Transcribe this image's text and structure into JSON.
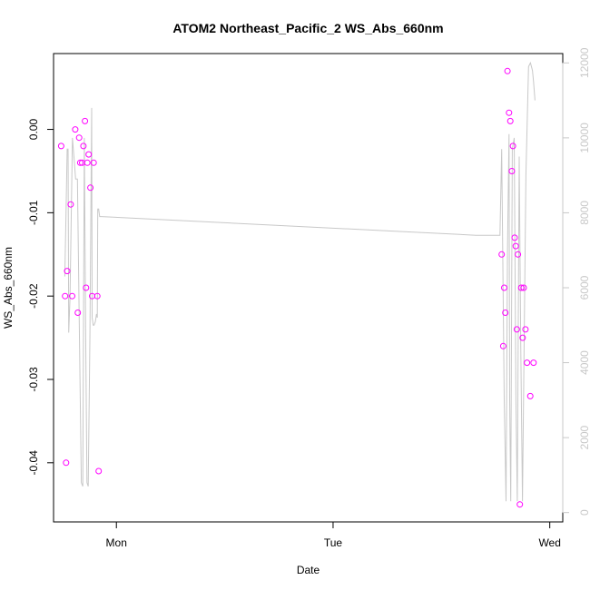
{
  "chart_data": {
    "type": "scatter",
    "title": "ATOM2 Northeast_Pacific_2 WS_Abs_660nm",
    "xlabel": "Date",
    "ylabel": "WS_Abs_660nm",
    "x_ticks": [
      {
        "x": 1.0,
        "label": "Mon"
      },
      {
        "x": 2.0,
        "label": "Tue"
      },
      {
        "x": 3.0,
        "label": "Wed"
      }
    ],
    "y_ticks": [
      0.0,
      -0.01,
      -0.02,
      -0.03,
      -0.04
    ],
    "y_tick_labels": [
      "0.00",
      "-0.01",
      "-0.02",
      "-0.03",
      "-0.04"
    ],
    "y_right_ticks": [
      0,
      2000,
      4000,
      6000,
      8000,
      10000,
      12000
    ],
    "y_right_tick_labels": [
      "0",
      "2000",
      "4000",
      "6000",
      "8000",
      "10000",
      "12000"
    ],
    "xlim": [
      0.71,
      3.06
    ],
    "ylim": [
      -0.0471,
      0.0091
    ],
    "y_right_lim": [
      -250,
      12250
    ],
    "colors": {
      "points": "#ff00ff",
      "line": "#c8c8c8",
      "right_axis": "#c8c8c8",
      "frame": "#000000"
    },
    "series": [
      {
        "points": [
          [
            0.745,
            -0.002
          ],
          [
            0.763,
            -0.02
          ],
          [
            0.768,
            -0.04
          ],
          [
            0.773,
            -0.017
          ],
          [
            0.789,
            -0.009
          ],
          [
            0.796,
            -0.02
          ],
          [
            0.81,
            0.0
          ],
          [
            0.822,
            -0.022
          ],
          [
            0.828,
            -0.001
          ],
          [
            0.833,
            -0.004
          ],
          [
            0.842,
            -0.004
          ],
          [
            0.848,
            -0.002
          ],
          [
            0.855,
            0.001
          ],
          [
            0.86,
            -0.019
          ],
          [
            0.866,
            -0.004
          ],
          [
            0.872,
            -0.003
          ],
          [
            0.88,
            -0.007
          ],
          [
            0.888,
            -0.02
          ],
          [
            0.895,
            -0.004
          ],
          [
            0.912,
            -0.02
          ],
          [
            0.918,
            -0.041
          ],
          [
            2.778,
            -0.015
          ],
          [
            2.785,
            -0.026
          ],
          [
            2.79,
            -0.019
          ],
          [
            2.795,
            -0.022
          ],
          [
            2.805,
            0.007
          ],
          [
            2.812,
            0.002
          ],
          [
            2.818,
            0.001
          ],
          [
            2.825,
            -0.005
          ],
          [
            2.83,
            -0.002
          ],
          [
            2.838,
            -0.013
          ],
          [
            2.843,
            -0.014
          ],
          [
            2.848,
            -0.024
          ],
          [
            2.853,
            -0.015
          ],
          [
            2.862,
            -0.045
          ],
          [
            2.868,
            -0.019
          ],
          [
            2.875,
            -0.025
          ],
          [
            2.88,
            -0.019
          ],
          [
            2.888,
            -0.024
          ],
          [
            2.895,
            -0.028
          ],
          [
            2.91,
            -0.032
          ],
          [
            2.925,
            -0.028
          ]
        ]
      },
      {
        "axis": "right",
        "points": [
          [
            0.762,
            6300
          ],
          [
            0.767,
            7800
          ],
          [
            0.773,
            9700
          ],
          [
            0.777,
            9700
          ],
          [
            0.78,
            4800
          ],
          [
            0.786,
            5700
          ],
          [
            0.797,
            10000
          ],
          [
            0.808,
            9200
          ],
          [
            0.812,
            8900
          ],
          [
            0.82,
            8900
          ],
          [
            0.828,
            5300
          ],
          [
            0.838,
            800
          ],
          [
            0.845,
            700
          ],
          [
            0.852,
            10000
          ],
          [
            0.858,
            5000
          ],
          [
            0.864,
            800
          ],
          [
            0.87,
            700
          ],
          [
            0.878,
            4800
          ],
          [
            0.886,
            10800
          ],
          [
            0.888,
            5200
          ],
          [
            0.893,
            5000
          ],
          [
            0.897,
            5000
          ],
          [
            0.903,
            5100
          ],
          [
            0.908,
            5300
          ],
          [
            0.912,
            5200
          ],
          [
            0.914,
            8100
          ],
          [
            0.918,
            8100
          ],
          [
            0.923,
            7900
          ],
          [
            0.93,
            7900
          ],
          [
            2.66,
            7400
          ],
          [
            2.77,
            7400
          ],
          [
            2.778,
            9700
          ],
          [
            2.79,
            3000
          ],
          [
            2.798,
            300
          ],
          [
            2.805,
            7000
          ],
          [
            2.812,
            10100
          ],
          [
            2.815,
            3000
          ],
          [
            2.82,
            300
          ],
          [
            2.827,
            9700
          ],
          [
            2.836,
            10000
          ],
          [
            2.844,
            3000
          ],
          [
            2.85,
            300
          ],
          [
            2.859,
            9500
          ],
          [
            2.866,
            4500
          ],
          [
            2.874,
            300
          ],
          [
            2.89,
            9000
          ],
          [
            2.902,
            11900
          ],
          [
            2.911,
            12000
          ],
          [
            2.92,
            11800
          ],
          [
            2.925,
            11500
          ],
          [
            2.932,
            11000
          ]
        ]
      }
    ],
    "grid": false,
    "legend": "none"
  }
}
